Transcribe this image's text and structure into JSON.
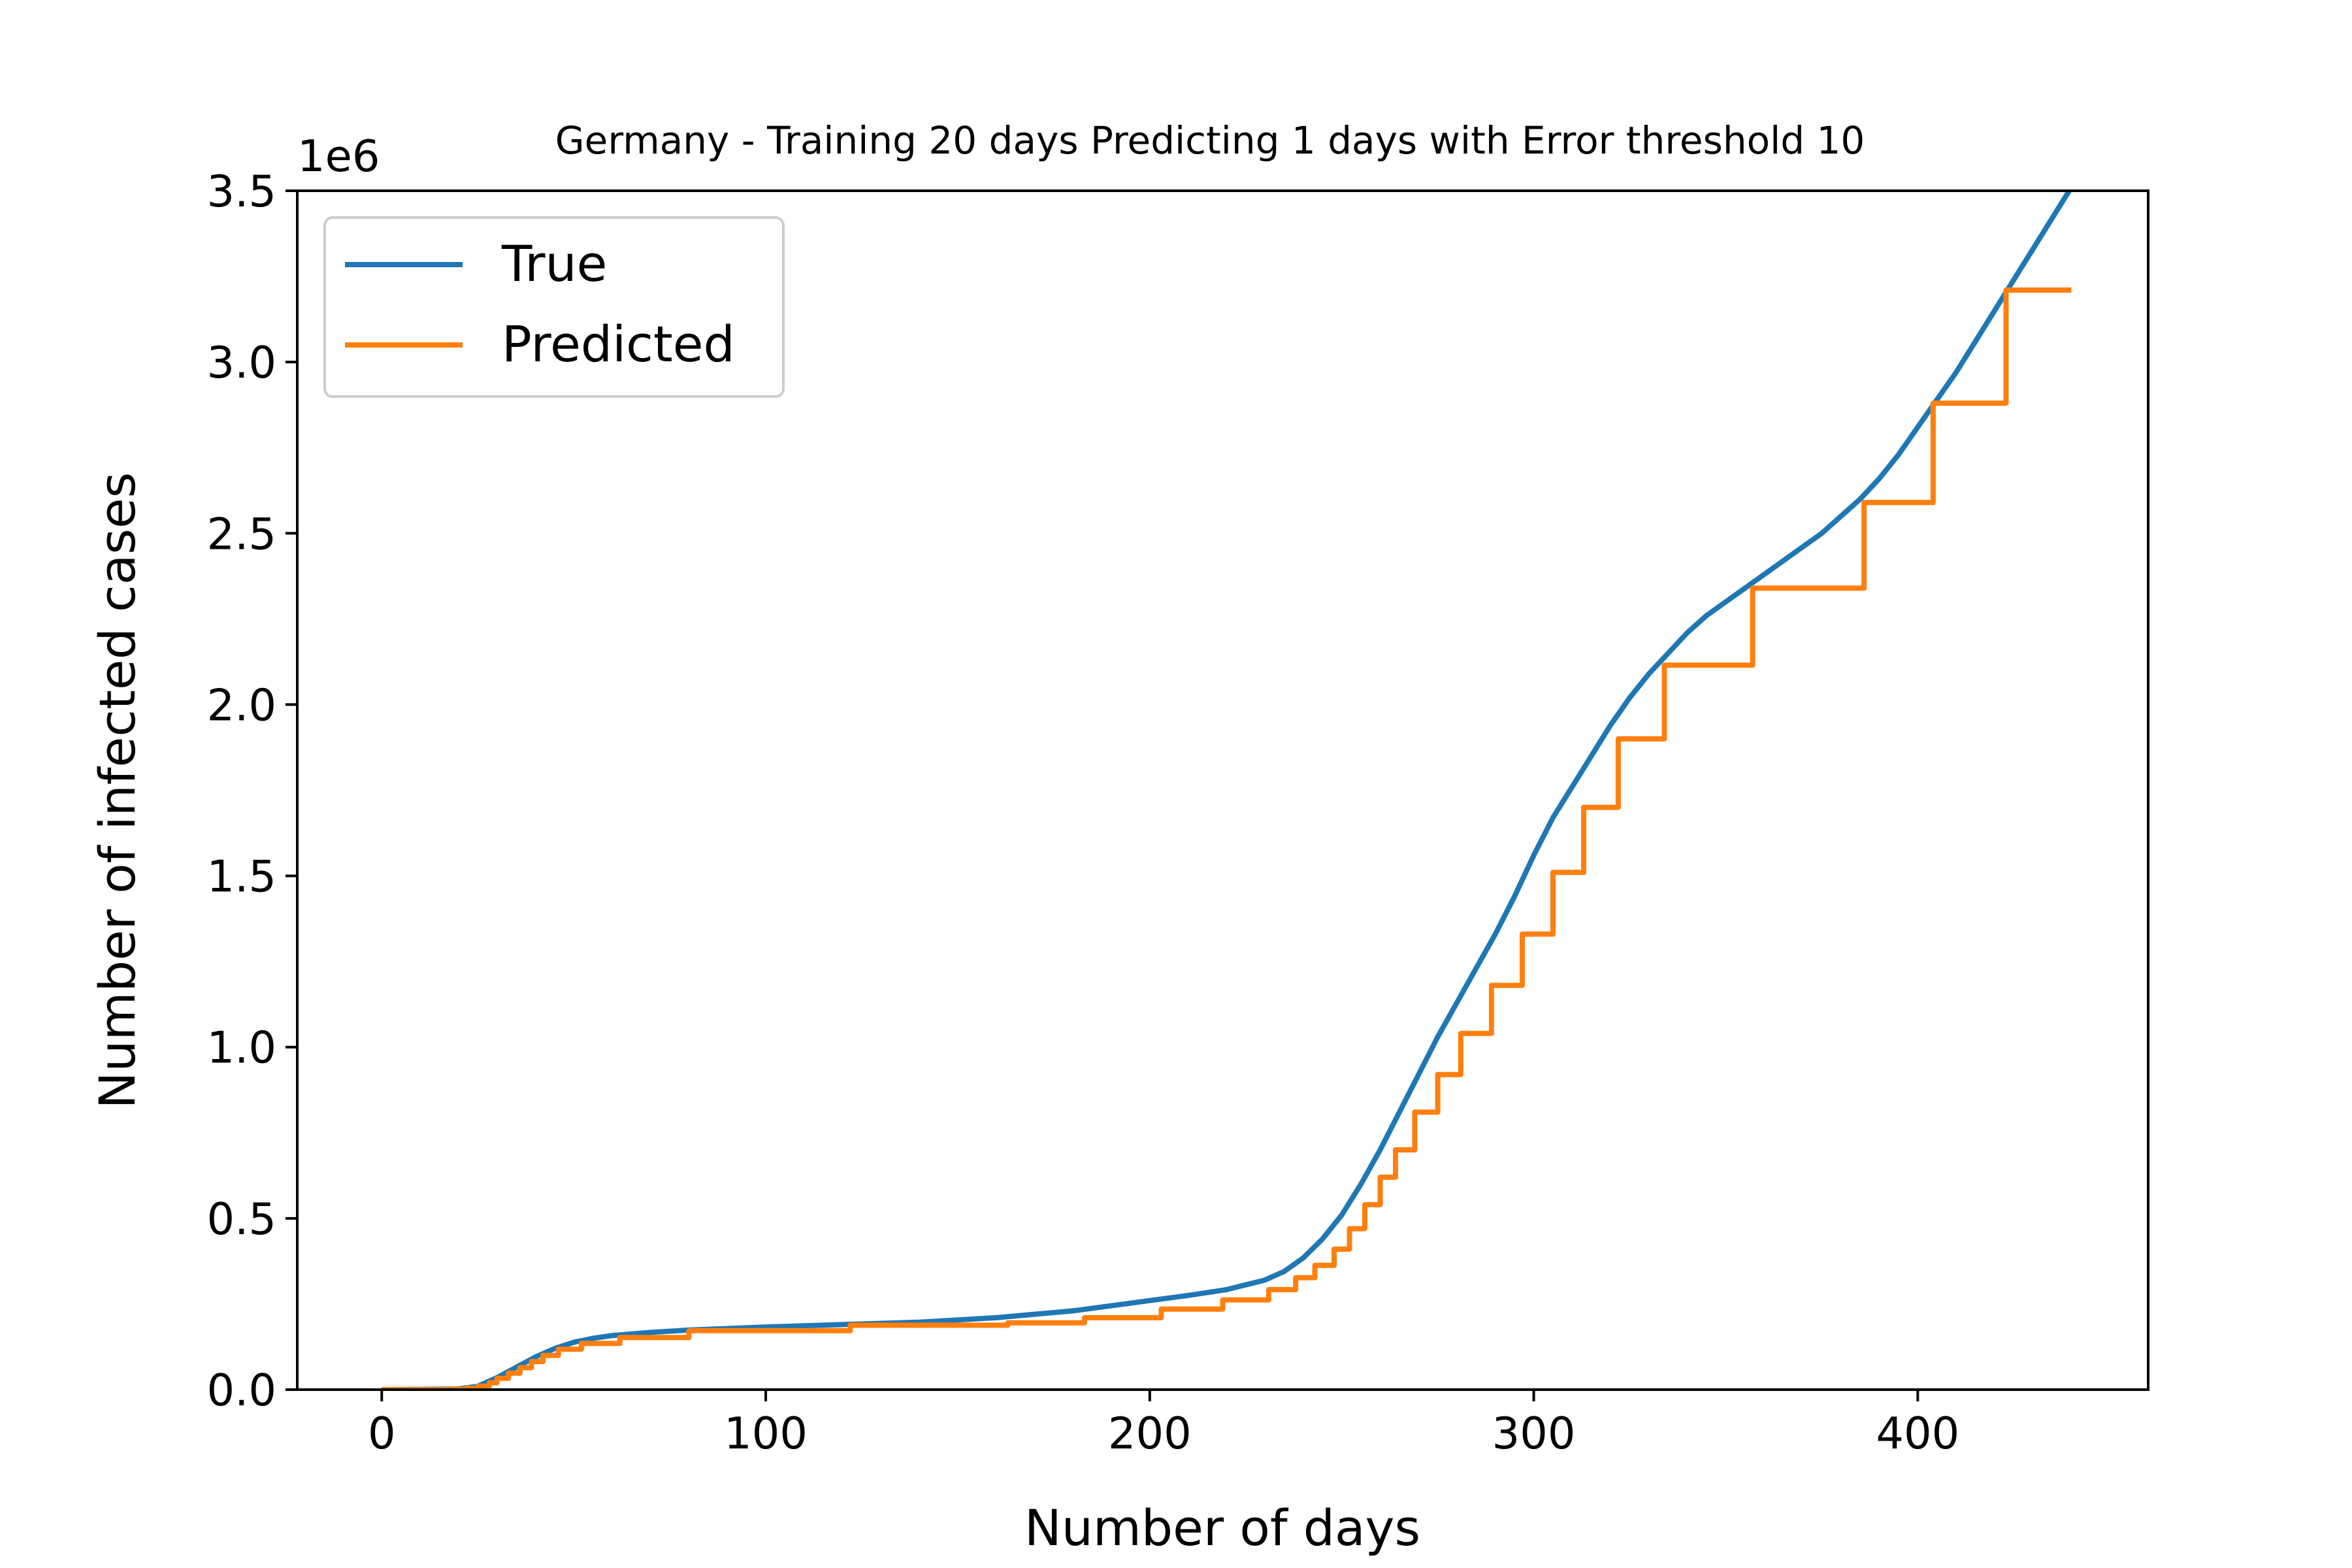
{
  "chart_data": {
    "type": "line",
    "title": "Germany - Training 20 days Predicting 1 days with Error threshold 10",
    "xlabel": "Number of days",
    "ylabel": "Number of infected cases",
    "y_offset_text": "1e6",
    "xlim": [
      -22,
      460
    ],
    "ylim": [
      0,
      3500000
    ],
    "xticks": [
      0,
      100,
      200,
      300,
      400
    ],
    "xtick_labels": [
      "0",
      "100",
      "200",
      "300",
      "400"
    ],
    "yticks": [
      0,
      500000,
      1000000,
      1500000,
      2000000,
      2500000,
      3000000,
      3500000
    ],
    "ytick_labels": [
      "0.0",
      "0.5",
      "1.0",
      "1.5",
      "2.0",
      "2.5",
      "3.0",
      "3.5"
    ],
    "grid": false,
    "legend_position": "upper-left",
    "series": [
      {
        "name": "True",
        "color": "#1f77b4",
        "style": "line",
        "x": [
          0,
          20,
          25,
          30,
          35,
          40,
          45,
          50,
          55,
          60,
          70,
          80,
          100,
          120,
          140,
          160,
          180,
          200,
          210,
          220,
          230,
          235,
          240,
          245,
          250,
          255,
          260,
          265,
          270,
          275,
          280,
          285,
          290,
          295,
          300,
          305,
          310,
          315,
          320,
          325,
          330,
          335,
          340,
          345,
          350,
          355,
          360,
          365,
          370,
          375,
          380,
          385,
          390,
          395,
          400,
          405,
          410,
          415,
          420,
          425,
          430,
          435,
          440
        ],
        "y": [
          0,
          2000,
          10000,
          35000,
          65000,
          95000,
          120000,
          138000,
          150000,
          158000,
          167000,
          174000,
          183000,
          190000,
          197000,
          210000,
          230000,
          260000,
          275000,
          292000,
          320000,
          345000,
          385000,
          440000,
          510000,
          600000,
          700000,
          810000,
          920000,
          1030000,
          1130000,
          1230000,
          1330000,
          1440000,
          1560000,
          1670000,
          1760000,
          1850000,
          1940000,
          2020000,
          2090000,
          2150000,
          2210000,
          2260000,
          2300000,
          2340000,
          2380000,
          2420000,
          2460000,
          2500000,
          2550000,
          2600000,
          2660000,
          2730000,
          2810000,
          2890000,
          2970000,
          3060000,
          3150000,
          3240000,
          3330000,
          3420000,
          3510000
        ]
      },
      {
        "name": "Predicted",
        "color": "#ff7f0e",
        "style": "step",
        "x": [
          0,
          18,
          22,
          25,
          28,
          30,
          33,
          36,
          39,
          42,
          46,
          52,
          62,
          80,
          122,
          163,
          183,
          203,
          219,
          231,
          238,
          243,
          248,
          252,
          256,
          260,
          264,
          269,
          275,
          281,
          289,
          297,
          305,
          313,
          322,
          334,
          357,
          386,
          404,
          423,
          440
        ],
        "y": [
          0,
          1000,
          4000,
          10000,
          20000,
          33000,
          48000,
          64000,
          82000,
          100000,
          118000,
          135000,
          152000,
          172000,
          188000,
          195000,
          210000,
          235000,
          262000,
          292000,
          327000,
          363000,
          410000,
          470000,
          540000,
          620000,
          700000,
          810000,
          920000,
          1040000,
          1180000,
          1330000,
          1510000,
          1700000,
          1900000,
          2115000,
          2340000,
          2590000,
          2880000,
          3210000,
          3210000
        ]
      }
    ]
  }
}
